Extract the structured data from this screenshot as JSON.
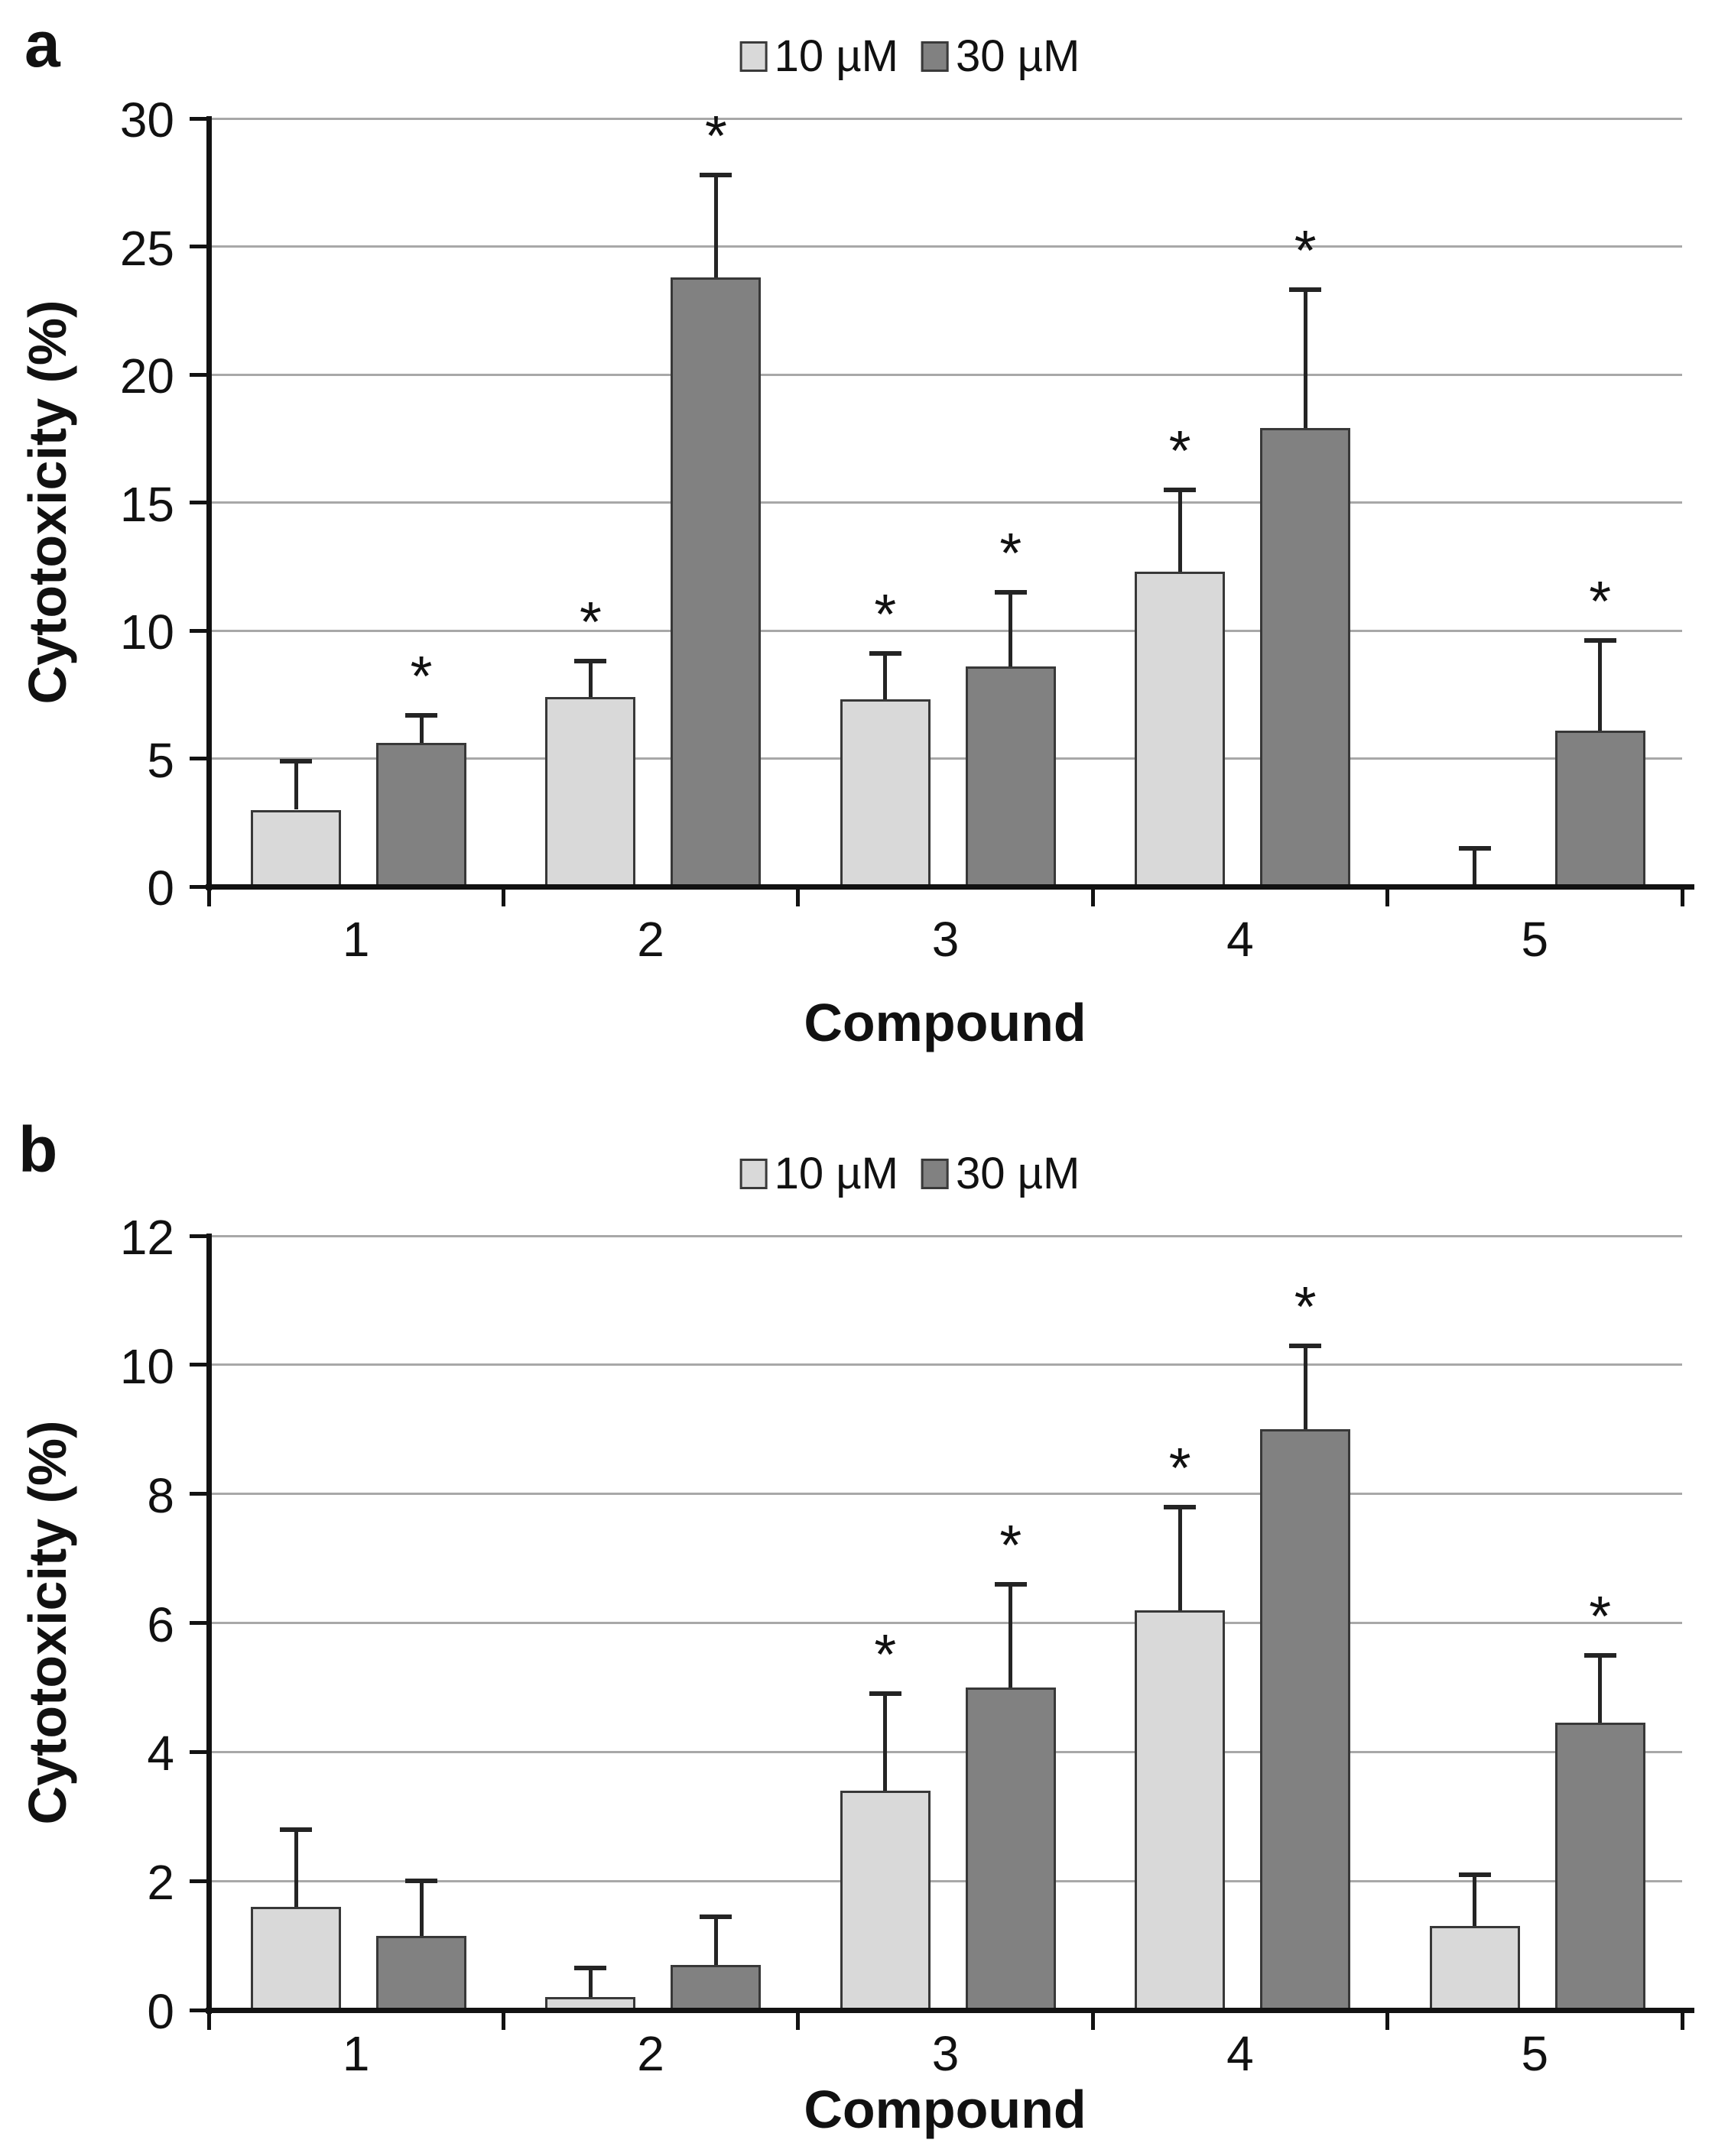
{
  "figure": {
    "significance_marker": "*",
    "colors": {
      "series_10uM_fill": "#d9d9d9",
      "series_30uM_fill": "#818181",
      "bar_border": "#383838",
      "gridline": "#a8a8a8",
      "axis": "#121212",
      "text": "#111111"
    }
  },
  "chart_data": [
    {
      "type": "bar",
      "panel_label": "a",
      "title": "",
      "categories": [
        "1",
        "2",
        "3",
        "4",
        "5"
      ],
      "series": [
        {
          "name": "10 µM",
          "color": "#d9d9d9",
          "values": [
            3.0,
            7.4,
            7.3,
            12.3,
            0.0
          ],
          "errors_plus": [
            1.9,
            1.4,
            1.8,
            3.2,
            1.5
          ],
          "significant": [
            false,
            true,
            true,
            true,
            false
          ]
        },
        {
          "name": "30 µM",
          "color": "#818181",
          "values": [
            5.6,
            23.8,
            8.6,
            17.9,
            6.1
          ],
          "errors_plus": [
            1.1,
            4.0,
            2.9,
            5.4,
            3.5
          ],
          "significant": [
            true,
            true,
            true,
            true,
            true
          ]
        }
      ],
      "xlabel": "Compound",
      "ylabel": "Cytotoxicity (%)",
      "ylim": [
        0,
        30
      ],
      "ytick_step": 5,
      "ytick_labels": [
        "0",
        "5",
        "10",
        "15",
        "20",
        "25",
        "30"
      ],
      "grid": true,
      "legend_position": "top-center",
      "significance_marker": "*",
      "error_bars": "plus-direction-with-cap"
    },
    {
      "type": "bar",
      "panel_label": "b",
      "title": "",
      "categories": [
        "1",
        "2",
        "3",
        "4",
        "5"
      ],
      "series": [
        {
          "name": "10 µM",
          "color": "#d9d9d9",
          "values": [
            1.6,
            0.2,
            3.4,
            6.2,
            1.3
          ],
          "errors_plus": [
            1.2,
            0.45,
            1.5,
            1.6,
            0.8
          ],
          "significant": [
            false,
            false,
            true,
            true,
            false
          ]
        },
        {
          "name": "30 µM",
          "color": "#818181",
          "values": [
            1.15,
            0.7,
            5.0,
            9.0,
            4.45
          ],
          "errors_plus": [
            0.85,
            0.75,
            1.6,
            1.3,
            1.05
          ],
          "significant": [
            false,
            false,
            true,
            true,
            true
          ]
        }
      ],
      "xlabel": "Compound",
      "ylabel": "Cytotoxicity (%)",
      "ylim": [
        0,
        12
      ],
      "ytick_step": 2,
      "ytick_labels": [
        "0",
        "2",
        "4",
        "6",
        "8",
        "10",
        "12"
      ],
      "grid": true,
      "legend_position": "top-center",
      "significance_marker": "*",
      "error_bars": "plus-direction-with-cap"
    }
  ]
}
